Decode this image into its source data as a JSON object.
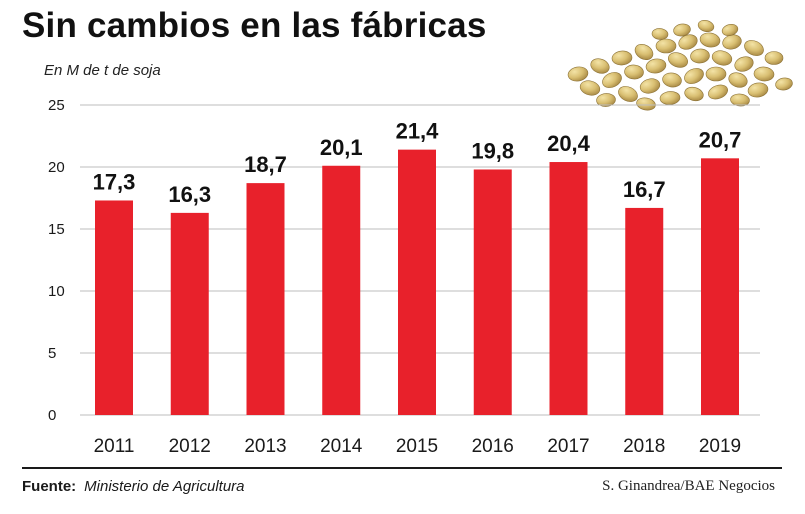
{
  "header": {
    "title": "Sin cambios en las fábricas",
    "unit_label": "En M de t de soja"
  },
  "footer": {
    "source_label": "Fuente:",
    "source_value": "Ministerio de Agricultura",
    "credit": "S. Ginandrea/BAE Negocios"
  },
  "image": {
    "icon": "soybeans-photo"
  },
  "colors": {
    "bar": "#e8212b",
    "grid": "#bdbdbd",
    "text": "#1a1a1a"
  },
  "chart_data": {
    "type": "bar",
    "categories": [
      "2011",
      "2012",
      "2013",
      "2014",
      "2015",
      "2016",
      "2017",
      "2018",
      "2019"
    ],
    "values": [
      17.3,
      16.3,
      18.7,
      20.1,
      21.4,
      19.8,
      20.4,
      16.7,
      20.7
    ],
    "value_labels": [
      "17,3",
      "16,3",
      "18,7",
      "20,1",
      "21,4",
      "19,8",
      "20,4",
      "16,7",
      "20,7"
    ],
    "yticks": [
      0,
      5,
      10,
      15,
      20,
      25
    ],
    "ylim": [
      0,
      25
    ],
    "grid": true,
    "legend": "none"
  }
}
